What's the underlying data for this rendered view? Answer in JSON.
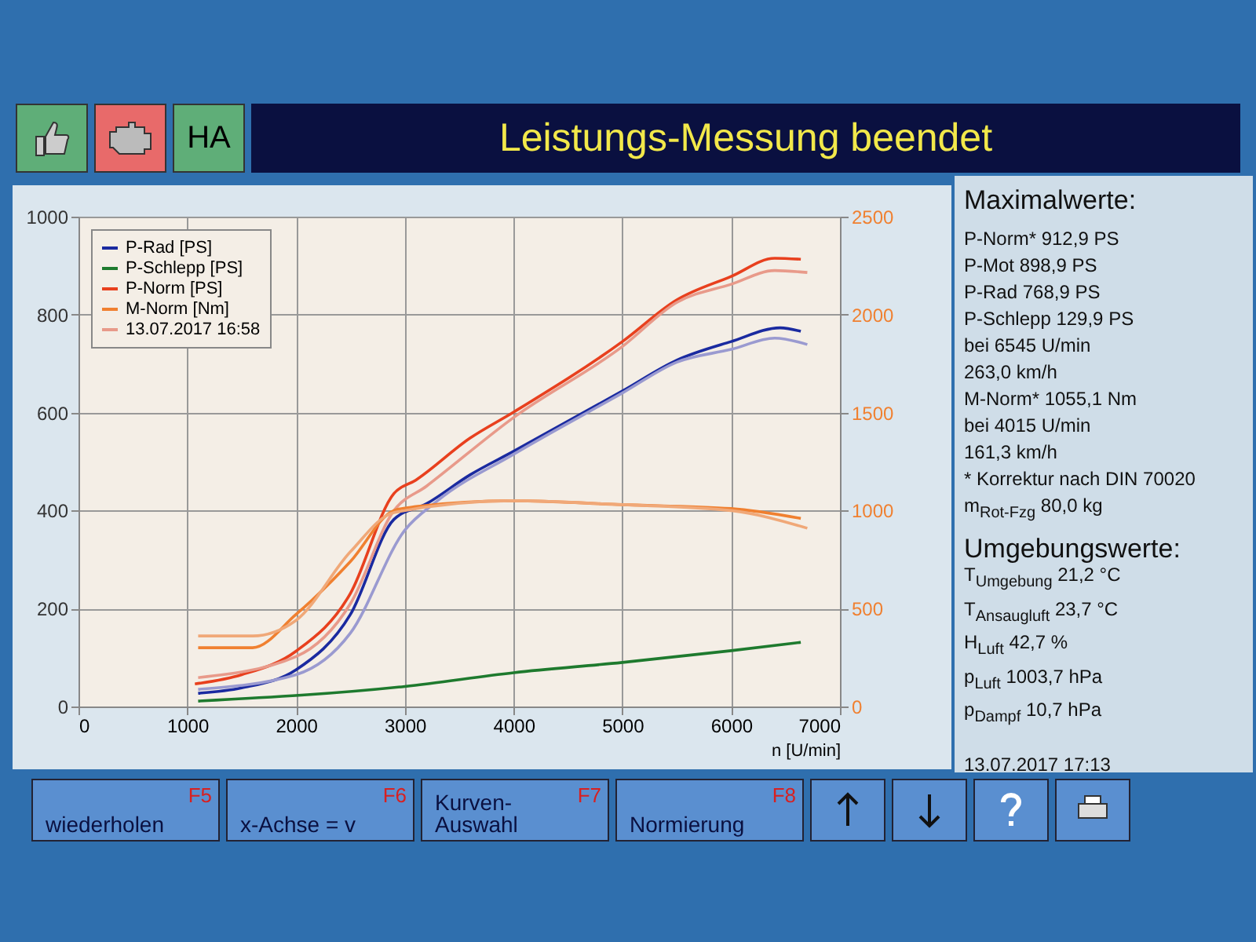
{
  "chart_data": [
    {
      "type": "line",
      "title": "Leistungs-Messung beendet",
      "xlabel": "n [U/min]",
      "xlim": [
        0,
        7000
      ],
      "xticks": [
        0,
        1000,
        2000,
        3000,
        4000,
        5000,
        6000,
        7000
      ],
      "ylim": [
        0,
        1000
      ],
      "yticks": [
        0,
        200,
        400,
        600,
        800,
        1000
      ],
      "y2lim": [
        0,
        2500
      ],
      "y2ticks": [
        0,
        500,
        1000,
        1500,
        2000,
        2500
      ],
      "grid": true,
      "legend": "top left",
      "series": [
        {
          "name": "P-Rad [PS]",
          "color": "#1a2aa0",
          "x": [
            1100,
            1500,
            2000,
            2500,
            2900,
            3200,
            3600,
            4000,
            5000,
            5500,
            6000,
            6450,
            6640
          ],
          "values": [
            27,
            38,
            75,
            188,
            382,
            414,
            473,
            521,
            644,
            707,
            745,
            773,
            766
          ]
        },
        {
          "name": "P-Schlepp [PS]",
          "color": "#1e7a2e",
          "x": [
            1100,
            3000,
            4000,
            5000,
            6000,
            6640
          ],
          "values": [
            11,
            41,
            69,
            90,
            114,
            131
          ]
        },
        {
          "name": "P-Norm [PS]",
          "color": "#e8401e",
          "x": [
            1070,
            1500,
            2000,
            2500,
            2900,
            3100,
            3600,
            4000,
            5000,
            5500,
            6000,
            6400,
            6640
          ],
          "values": [
            46,
            65,
            113,
            231,
            435,
            462,
            548,
            601,
            745,
            830,
            878,
            915,
            913
          ]
        },
        {
          "name": "M-Norm [Nm]",
          "color": "#f08030",
          "axis": "y2",
          "x": [
            1100,
            1600,
            2000,
            2500,
            2900,
            3100,
            4000,
            5000,
            6000,
            6640
          ],
          "values": [
            300,
            300,
            470,
            740,
            1000,
            1020,
            1050,
            1030,
            1010,
            960
          ]
        },
        {
          "name": "13.07.2017 16:58",
          "color": "#e89a8a",
          "x": [
            1100,
            2000,
            2500,
            2900,
            3200,
            4000,
            5000,
            5500,
            6000,
            6400,
            6700
          ],
          "values": [
            59,
            102,
            210,
            400,
            450,
            590,
            735,
            825,
            862,
            890,
            886
          ]
        },
        {
          "color": "#9a9ad0",
          "x": [
            1100,
            2000,
            2500,
            3000,
            3300,
            4000,
            5000,
            5500,
            6000,
            6400,
            6700
          ],
          "values": [
            35,
            65,
            150,
            360,
            420,
            515,
            640,
            703,
            729,
            752,
            739
          ]
        },
        {
          "color": "#f0a878",
          "axis": "y2",
          "x": [
            1100,
            1600,
            2000,
            2500,
            2900,
            4000,
            5000,
            6000,
            6700
          ],
          "values": [
            360,
            360,
            440,
            790,
            990,
            1050,
            1030,
            1000,
            910
          ]
        }
      ]
    },
    {
      "type": "other",
      "title": "Maximalwerte:",
      "annotations": [
        "P-Norm* 912,9 PS",
        "P-Mot 898,9 PS",
        "P-Rad 768,9 PS",
        "P-Schlepp 129,9 PS",
        "bei 6545 U/min",
        "263,0 km/h",
        "M-Norm* 1055,1 Nm",
        "bei 4015 U/min",
        "161,3 km/h",
        "* Korrektur nach DIN 70020",
        "m$_{Rot-Fzg}$ 80,0 kg",
        "Umgebungswerte:",
        "T$_{Umgebung}$ 21,2 °C",
        "T$_{Ansaugluft}$ 23,7 °C",
        "H$_{Luft}$ 42,7 %",
        "p$_{Luft}$ 1003,7 hPa",
        "p$_{Dampf}$ 10,7 hPa",
        "13.07.2017 17:13"
      ]
    },
    {
      "type": "other",
      "annotations": [
        "HA",
        "wiederholen",
        "F5",
        "x-Achse = v",
        "F6",
        "Kurven-Auswahl",
        "F7",
        "Normierung",
        "F8"
      ]
    }
  ]
}
